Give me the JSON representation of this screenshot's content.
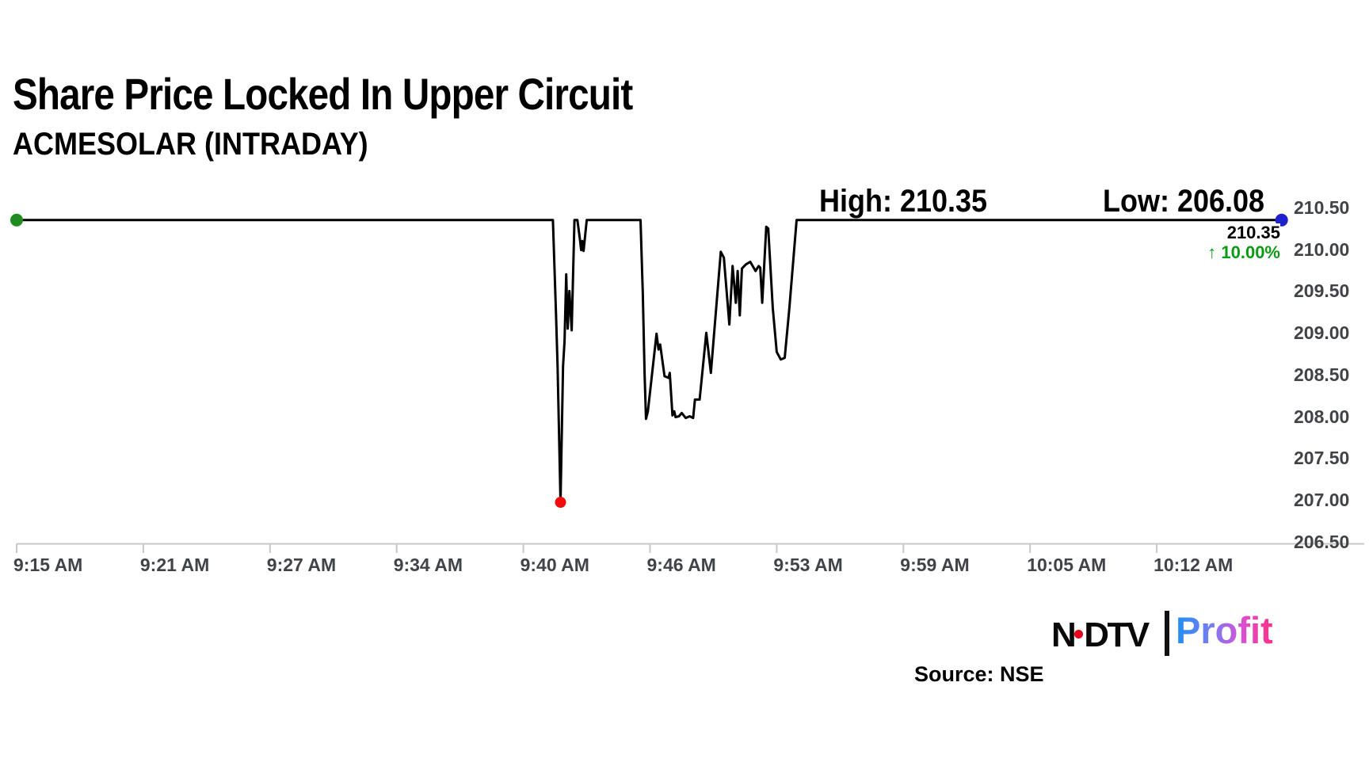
{
  "header": {
    "title": "Share Price Locked In Upper Circuit",
    "subtitle": "ACMESOLAR (INTRADAY)"
  },
  "annotations": {
    "high_text": "High: 210.35",
    "low_text": "Low: 206.08",
    "last_price": "210.35",
    "change_text": "↑ 10.00%",
    "change_color": "#0a9a14"
  },
  "chart_data": {
    "type": "line",
    "symbol": "ACMESOLAR",
    "session": "INTRADAY",
    "title": "Share Price Locked In Upper Circuit",
    "high": 210.35,
    "low": 206.08,
    "last": 210.35,
    "change_pct": 10.0,
    "upper_circuit_price": 210.35,
    "plotted_low": 206.97,
    "ylim": [
      206.5,
      210.5
    ],
    "y_ticks": [
      "210.50",
      "210.00",
      "209.50",
      "209.00",
      "208.50",
      "208.00",
      "207.50",
      "207.00",
      "206.50"
    ],
    "x_ticks": [
      "9:15 AM",
      "9:21 AM",
      "9:27 AM",
      "9:34 AM",
      "9:40 AM",
      "9:46 AM",
      "9:53 AM",
      "9:59 AM",
      "10:05 AM",
      "10:12 AM"
    ],
    "t_unit": "minutes after 9:15 AM",
    "line_color": "#000000",
    "grid": false,
    "series": [
      {
        "name": "price",
        "points": [
          [
            0,
            210.35
          ],
          [
            26.4,
            210.35
          ],
          [
            26.55,
            209.2
          ],
          [
            26.62,
            208.6
          ],
          [
            26.76,
            206.97
          ],
          [
            26.88,
            208.6
          ],
          [
            26.95,
            208.9
          ],
          [
            27.03,
            209.7
          ],
          [
            27.1,
            209.05
          ],
          [
            27.18,
            209.5
          ],
          [
            27.29,
            209.03
          ],
          [
            27.42,
            210.35
          ],
          [
            27.56,
            210.35
          ],
          [
            27.68,
            210.12
          ],
          [
            27.74,
            209.99
          ],
          [
            27.79,
            210.1
          ],
          [
            27.85,
            209.98
          ],
          [
            28.0,
            210.35
          ],
          [
            30.55,
            210.35
          ],
          [
            30.66,
            209.46
          ],
          [
            30.74,
            208.52
          ],
          [
            30.81,
            207.97
          ],
          [
            30.9,
            208.06
          ],
          [
            31.36,
            208.99
          ],
          [
            31.47,
            208.8
          ],
          [
            31.56,
            208.86
          ],
          [
            31.8,
            208.48
          ],
          [
            32.02,
            208.46
          ],
          [
            32.09,
            208.52
          ],
          [
            32.24,
            208.01
          ],
          [
            32.34,
            208.06
          ],
          [
            32.41,
            207.99
          ],
          [
            32.6,
            208.0
          ],
          [
            32.75,
            208.04
          ],
          [
            32.97,
            207.98
          ],
          [
            33.19,
            208.0
          ],
          [
            33.38,
            207.98
          ],
          [
            33.48,
            208.2
          ],
          [
            33.74,
            208.2
          ],
          [
            34.11,
            209.0
          ],
          [
            34.36,
            208.52
          ],
          [
            34.91,
            209.97
          ],
          [
            35.08,
            209.9
          ],
          [
            35.38,
            209.1
          ],
          [
            35.56,
            209.8
          ],
          [
            35.74,
            209.36
          ],
          [
            35.84,
            209.74
          ],
          [
            35.96,
            209.21
          ],
          [
            36.08,
            209.77
          ],
          [
            36.3,
            209.82
          ],
          [
            36.54,
            209.85
          ],
          [
            36.83,
            209.74
          ],
          [
            37.0,
            209.8
          ],
          [
            37.09,
            209.78
          ],
          [
            37.2,
            209.36
          ],
          [
            37.42,
            210.27
          ],
          [
            37.53,
            210.25
          ],
          [
            37.78,
            209.3
          ],
          [
            38.0,
            208.77
          ],
          [
            38.19,
            208.68
          ],
          [
            38.38,
            208.7
          ],
          [
            38.6,
            209.3
          ],
          [
            38.94,
            210.35
          ],
          [
            63.9,
            210.35
          ]
        ]
      }
    ],
    "markers": [
      {
        "name": "session-start-dot",
        "t": 0,
        "p": 210.35,
        "color": "#1e8c1e",
        "r": 8
      },
      {
        "name": "session-low-dot",
        "t": 26.76,
        "p": 206.97,
        "color": "#f40b0b",
        "r": 7
      },
      {
        "name": "latest-price-dot",
        "t": 63.9,
        "p": 210.35,
        "color": "#2121cc",
        "r": 8
      }
    ]
  },
  "footer": {
    "source": "Source: NSE",
    "logo_ndtv_n": "N",
    "logo_ndtv_dtv": "DTV",
    "logo_profit": "Profit"
  }
}
